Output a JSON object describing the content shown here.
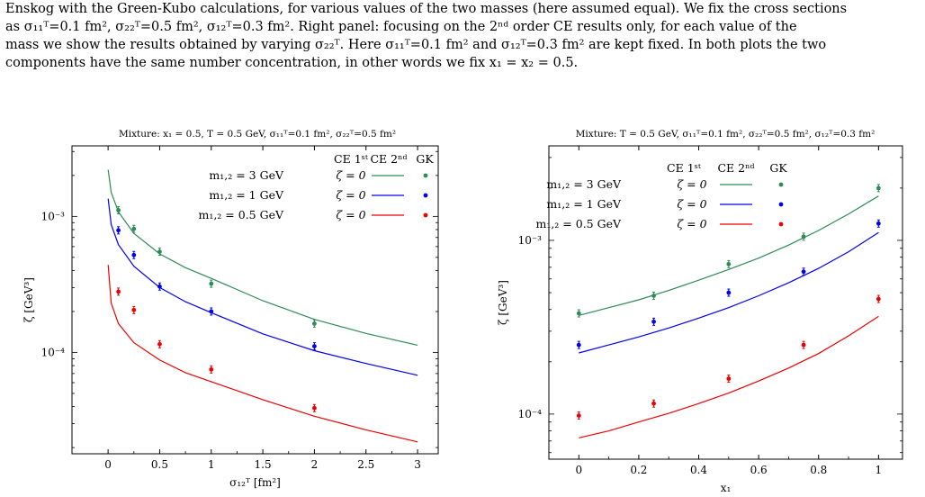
{
  "caption": {
    "line1": "Enskog with the Green-Kubo calculations, for various values of the two masses (here assumed equal). We fix the cross sections",
    "line2": "as σ₁₁ᵀ=0.1 fm², σ₂₂ᵀ=0.5 fm², σ₁₂ᵀ=0.3 fm². Right panel: focusing on the 2ⁿᵈ order CE results only, for each value of the",
    "line3": "mass we show the results obtained by varying σ₂₂ᵀ. Here σ₁₁ᵀ=0.1 fm² and σ₁₂ᵀ=0.3 fm² are kept fixed. In both plots the two",
    "line4": "components have the same number concentration, in other words we fix x₁ = x₂ = 0.5."
  },
  "colors": {
    "green": "#2e8b57",
    "blue": "#0000ee",
    "red": "#ee0000"
  },
  "chart_data": [
    {
      "type": "line",
      "title": "Mixture: x₁ = 0.5, T = 0.5 GeV, σ₁₁ᵀ=0.1 fm², σ₂₂ᵀ=0.5 fm²",
      "xlabel": "σ₁₂ᵀ [fm²]",
      "ylabel": "ζ [GeV³]",
      "xlim": [
        -0.35,
        3.2
      ],
      "ylim": [
        1.8e-05,
        0.0033
      ],
      "yscale": "log",
      "xticks": [
        0,
        0.5,
        1,
        1.5,
        2,
        2.5,
        3
      ],
      "xtick_labels": [
        "0",
        "0.5",
        "1",
        "1.5",
        "2",
        "2.5",
        "3"
      ],
      "yticks": [
        0.001,
        0.0001
      ],
      "ytick_labels": [
        "10⁻³",
        "10⁻⁴"
      ],
      "legend_position": "top-right",
      "legend_headers": [
        "CE 1ˢᵗ",
        "CE 2ⁿᵈ",
        "GK"
      ],
      "series": [
        {
          "name": "m₁,₂ = 3 GeV",
          "ce1": "ζ = 0",
          "color_key": "green",
          "line": {
            "x": [
              0.001,
              0.03,
              0.1,
              0.25,
              0.5,
              0.75,
              1,
              1.5,
              2,
              2.5,
              3
            ],
            "y": [
              0.0022,
              0.0015,
              0.00108,
              0.00075,
              0.00053,
              0.00042,
              0.00035,
              0.00024,
              0.000175,
              0.000138,
              0.000113
            ]
          },
          "points": {
            "x": [
              0.1,
              0.25,
              0.5,
              1,
              2
            ],
            "y": [
              0.00111,
              0.00081,
              0.00055,
              0.00032,
              0.000163
            ]
          }
        },
        {
          "name": "m₁,₂ = 1 GeV",
          "ce1": "ζ = 0",
          "color_key": "blue",
          "line": {
            "x": [
              0.001,
              0.03,
              0.1,
              0.25,
              0.5,
              0.75,
              1,
              1.5,
              2,
              2.5,
              3
            ],
            "y": [
              0.00135,
              0.00087,
              0.00062,
              0.00043,
              0.0003,
              0.000236,
              0.000196,
              0.000137,
              0.000103,
              8.3e-05,
              6.8e-05
            ]
          },
          "points": {
            "x": [
              0.1,
              0.25,
              0.5,
              1,
              2
            ],
            "y": [
              0.00079,
              0.00052,
              0.000305,
              0.0002,
              0.000111
            ]
          }
        },
        {
          "name": "m₁,₂ = 0.5 GeV",
          "ce1": "ζ = 0",
          "color_key": "red",
          "line": {
            "x": [
              0.001,
              0.03,
              0.1,
              0.25,
              0.5,
              0.75,
              1,
              1.5,
              2,
              2.5,
              3
            ],
            "y": [
              0.00044,
              0.00023,
              0.000163,
              0.000118,
              8.8e-05,
              7.1e-05,
              6.1e-05,
              4.5e-05,
              3.4e-05,
              2.7e-05,
              2.2e-05
            ]
          },
          "points": {
            "x": [
              0.1,
              0.25,
              0.5,
              1,
              2
            ],
            "y": [
              0.00028,
              0.000205,
              0.000115,
              7.5e-05,
              3.9e-05
            ]
          }
        }
      ]
    },
    {
      "type": "line",
      "title": "Mixture: T = 0.5 GeV, σ₁₁ᵀ=0.1 fm², σ₂₂ᵀ=0.5 fm², σ₁₂ᵀ=0.3 fm²",
      "xlabel": "x₁",
      "ylabel": "ζ [GeV³]",
      "xlim": [
        -0.1,
        1.08
      ],
      "ylim": [
        5.5e-05,
        0.0035
      ],
      "yscale": "log",
      "xticks": [
        0,
        0.2,
        0.4,
        0.6,
        0.8,
        1
      ],
      "xtick_labels": [
        "0",
        "0.2",
        "0.4",
        "0.6",
        "0.8",
        "1"
      ],
      "yticks": [
        0.001,
        0.0001
      ],
      "ytick_labels": [
        "10⁻³",
        "10⁻⁴"
      ],
      "legend_position": "top-left",
      "legend_headers": [
        "CE 1ˢᵗ",
        "CE 2ⁿᵈ",
        "GK"
      ],
      "series": [
        {
          "name": "m₁,₂ = 3 GeV",
          "ce1": "ζ = 0",
          "color_key": "green",
          "line": {
            "x": [
              0,
              0.1,
              0.2,
              0.3,
              0.4,
              0.5,
              0.6,
              0.7,
              0.8,
              0.9,
              1
            ],
            "y": [
              0.00037,
              0.00041,
              0.000455,
              0.000515,
              0.00059,
              0.00068,
              0.00079,
              0.00094,
              0.00114,
              0.00142,
              0.0018
            ]
          },
          "points": {
            "x": [
              0,
              0.25,
              0.5,
              0.75,
              1
            ],
            "y": [
              0.00038,
              0.00048,
              0.00073,
              0.00105,
              0.002
            ]
          }
        },
        {
          "name": "m₁,₂ = 1 GeV",
          "ce1": "ζ = 0",
          "color_key": "blue",
          "line": {
            "x": [
              0,
              0.1,
              0.2,
              0.3,
              0.4,
              0.5,
              0.6,
              0.7,
              0.8,
              0.9,
              1
            ],
            "y": [
              0.000225,
              0.00025,
              0.000278,
              0.000313,
              0.000357,
              0.00041,
              0.00048,
              0.00057,
              0.00069,
              0.00086,
              0.00111
            ]
          },
          "points": {
            "x": [
              0,
              0.25,
              0.5,
              0.75,
              1
            ],
            "y": [
              0.00025,
              0.00034,
              0.0005,
              0.00066,
              0.00125
            ]
          }
        },
        {
          "name": "m₁,₂ = 0.5 GeV",
          "ce1": "ζ = 0",
          "color_key": "red",
          "line": {
            "x": [
              0,
              0.1,
              0.2,
              0.3,
              0.4,
              0.5,
              0.6,
              0.7,
              0.8,
              0.9,
              1
            ],
            "y": [
              7.3e-05,
              8e-05,
              9e-05,
              0.000101,
              0.000115,
              0.000132,
              0.000155,
              0.000184,
              0.000223,
              0.000282,
              0.000365
            ]
          },
          "points": {
            "x": [
              0,
              0.25,
              0.5,
              0.75,
              1
            ],
            "y": [
              9.8e-05,
              0.000115,
              0.00016,
              0.00025,
              0.00046
            ]
          }
        }
      ]
    }
  ]
}
